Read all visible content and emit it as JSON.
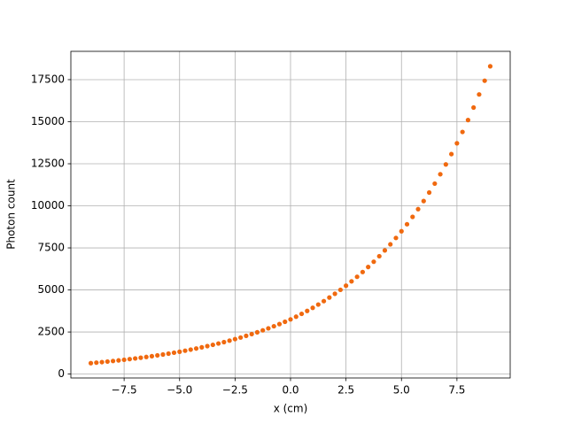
{
  "chart_data": {
    "type": "scatter",
    "xlabel": "x (cm)",
    "ylabel": "Photon count",
    "color": "#f0690f",
    "grid": true,
    "x": [
      -9,
      -8.75,
      -8.5,
      -8.25,
      -8,
      -7.75,
      -7.5,
      -7.25,
      -7,
      -6.75,
      -6.5,
      -6.25,
      -6,
      -5.75,
      -5.5,
      -5.25,
      -5,
      -4.75,
      -4.5,
      -4.25,
      -4,
      -3.75,
      -3.5,
      -3.25,
      -3,
      -2.75,
      -2.5,
      -2.25,
      -2,
      -1.75,
      -1.5,
      -1.25,
      -1,
      -0.75,
      -0.5,
      -0.25,
      0,
      0.25,
      0.5,
      0.75,
      1,
      1.25,
      1.5,
      1.75,
      2,
      2.25,
      2.5,
      2.75,
      3,
      3.25,
      3.5,
      3.75,
      4,
      4.25,
      4.5,
      4.75,
      5,
      5.25,
      5.5,
      5.75,
      6,
      6.25,
      6.5,
      6.75,
      7,
      7.25,
      7.5,
      7.75,
      8,
      8.25,
      8.5,
      8.75,
      9
    ],
    "values": [
      650,
      679,
      710,
      743,
      777,
      812,
      849,
      888,
      929,
      971,
      1016,
      1062,
      1111,
      1161,
      1215,
      1270,
      1328,
      1389,
      1453,
      1519,
      1589,
      1661,
      1737,
      1817,
      1900,
      1987,
      2078,
      2173,
      2272,
      2376,
      2485,
      2598,
      2717,
      2842,
      2972,
      3108,
      3250,
      3410,
      3578,
      3754,
      3938,
      4132,
      4335,
      4548,
      4772,
      5006,
      5253,
      5511,
      5782,
      6066,
      6364,
      6677,
      7005,
      7350,
      7711,
      8090,
      8488,
      8905,
      9343,
      9802,
      10284,
      10790,
      11320,
      11877,
      12461,
      13074,
      13717,
      14391,
      15099,
      15841,
      16620,
      17437,
      18295
    ],
    "xlim": [
      -9.9,
      9.9
    ],
    "ylim": [
      -232,
      19182
    ],
    "xticks": [
      {
        "value": -7.5,
        "label": "−7.5"
      },
      {
        "value": -5,
        "label": "−5.0"
      },
      {
        "value": -2.5,
        "label": "−2.5"
      },
      {
        "value": 0,
        "label": "0.0"
      },
      {
        "value": 2.5,
        "label": "2.5"
      },
      {
        "value": 5,
        "label": "5.0"
      },
      {
        "value": 7.5,
        "label": "7.5"
      }
    ],
    "yticks": [
      0,
      2500,
      5000,
      7500,
      10000,
      12500,
      15000,
      17500
    ]
  }
}
